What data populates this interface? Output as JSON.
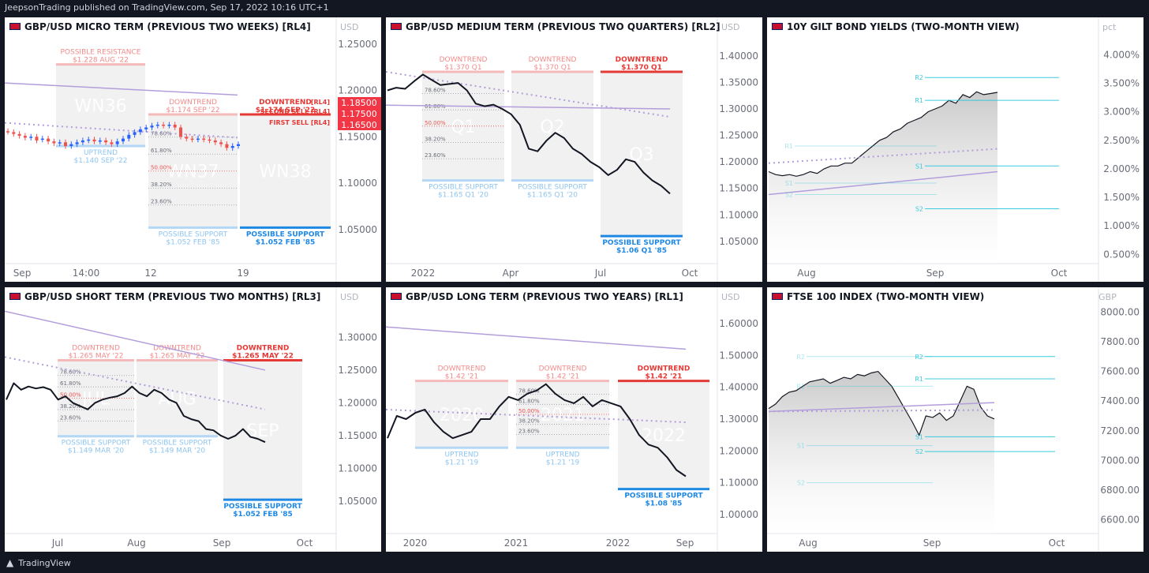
{
  "header": {
    "publish_line": "JeepsonTrading published on TradingView.com, Sep 17, 2022 10:16 UTC+1"
  },
  "footer": {
    "brand": "TradingView"
  },
  "colors": {
    "bg": "#131722",
    "downtrend": "#e53935",
    "downtrend_light": "#f4b9b9",
    "support": "#1e88e5",
    "support_light": "#b3d7f5",
    "ma_purple": "#b39ddb",
    "level_cyan": "#26c6da"
  },
  "chart_data": [
    {
      "id": "micro",
      "type": "candlestick",
      "title": "GBP/USD MICRO TERM (PREVIOUS TWO WEEKS) [RL4]",
      "unit": "USD",
      "ylim": [
        1.02,
        1.26
      ],
      "x_ticks": [
        "Sep",
        "14:00",
        "12",
        "19"
      ],
      "y_ticks": [
        "1.25000",
        "1.20000",
        "1.15000",
        "1.10000",
        "1.05000"
      ],
      "candles": [
        {
          "o": 1.156,
          "c": 1.1555
        },
        {
          "o": 1.155,
          "c": 1.153
        },
        {
          "o": 1.153,
          "c": 1.151
        },
        {
          "o": 1.151,
          "c": 1.149
        },
        {
          "o": 1.149,
          "c": 1.15
        },
        {
          "o": 1.15,
          "c": 1.146
        },
        {
          "o": 1.147,
          "c": 1.148
        },
        {
          "o": 1.148,
          "c": 1.145
        },
        {
          "o": 1.145,
          "c": 1.143
        },
        {
          "o": 1.143,
          "c": 1.144
        },
        {
          "o": 1.144,
          "c": 1.14
        },
        {
          "o": 1.14,
          "c": 1.142
        },
        {
          "o": 1.142,
          "c": 1.144
        },
        {
          "o": 1.144,
          "c": 1.146
        },
        {
          "o": 1.146,
          "c": 1.147
        },
        {
          "o": 1.147,
          "c": 1.145
        },
        {
          "o": 1.145,
          "c": 1.146
        },
        {
          "o": 1.146,
          "c": 1.144
        },
        {
          "o": 1.144,
          "c": 1.142
        },
        {
          "o": 1.142,
          "c": 1.145
        },
        {
          "o": 1.145,
          "c": 1.148
        },
        {
          "o": 1.148,
          "c": 1.152
        },
        {
          "o": 1.152,
          "c": 1.155
        },
        {
          "o": 1.155,
          "c": 1.158
        },
        {
          "o": 1.158,
          "c": 1.16
        },
        {
          "o": 1.16,
          "c": 1.162
        },
        {
          "o": 1.162,
          "c": 1.163
        },
        {
          "o": 1.163,
          "c": 1.162
        },
        {
          "o": 1.162,
          "c": 1.163
        },
        {
          "o": 1.163,
          "c": 1.16
        },
        {
          "o": 1.16,
          "c": 1.15
        },
        {
          "o": 1.15,
          "c": 1.148
        },
        {
          "o": 1.148,
          "c": 1.147
        },
        {
          "o": 1.147,
          "c": 1.148
        },
        {
          "o": 1.148,
          "c": 1.147
        },
        {
          "o": 1.147,
          "c": 1.146
        },
        {
          "o": 1.146,
          "c": 1.144
        },
        {
          "o": 1.144,
          "c": 1.142
        },
        {
          "o": 1.142,
          "c": 1.138
        },
        {
          "o": 1.138,
          "c": 1.14
        },
        {
          "o": 1.14,
          "c": 1.142
        }
      ],
      "ma_line": [
        1.208,
        1.195
      ],
      "ma_dotted": [
        1.165,
        1.149
      ],
      "ranges": [
        {
          "name": "WN36",
          "top_label": "POSSIBLE RESISTANCE",
          "top_value": "$1.228 AUG '22",
          "bottom_label": "UPTREND",
          "bottom_value": "$1.140 SEP '22",
          "strong": false
        },
        {
          "name": "WN37",
          "top_label": "DOWNTREND",
          "top_value": "$1.174 SEP '22",
          "bottom_label": "POSSIBLE SUPPORT",
          "bottom_value": "$1.052  FEB '85",
          "strong": false
        },
        {
          "name": "WN38",
          "top_label": "DOWNTREND",
          "top_value": "$1.174 SEP '22",
          "bottom_label": "POSSIBLE SUPPORT",
          "bottom_value": "$1.052  FEB '85",
          "strong": true
        }
      ],
      "fib_labels": [
        "78.60%",
        "61.80%",
        "50.00%",
        "38.20%",
        "23.60%"
      ],
      "price_tags": [
        {
          "text": "1.18500",
          "value": 1.185
        },
        {
          "text": "1.17500",
          "value": 1.175
        },
        {
          "text": "1.16500",
          "value": 1.165
        }
      ],
      "side_labels": [
        "[RL4]",
        "SECOND SELL [RL4]",
        "FIRST SELL [RL4]"
      ]
    },
    {
      "id": "medium",
      "type": "line",
      "title": "GBP/USD MEDIUM TERM (PREVIOUS TWO QUARTERS) [RL2]",
      "unit": "USD",
      "ylim": [
        1.02,
        1.44
      ],
      "x_ticks": [
        "2022",
        "Apr",
        "Jul",
        "Oct"
      ],
      "y_ticks": [
        "1.40000",
        "1.35000",
        "1.30000",
        "1.25000",
        "1.20000",
        "1.15000",
        "1.10000",
        "1.05000"
      ],
      "values": [
        1.335,
        1.34,
        1.338,
        1.352,
        1.365,
        1.355,
        1.345,
        1.347,
        1.349,
        1.335,
        1.31,
        1.305,
        1.308,
        1.3,
        1.29,
        1.27,
        1.225,
        1.22,
        1.24,
        1.255,
        1.245,
        1.225,
        1.215,
        1.2,
        1.19,
        1.175,
        1.185,
        1.205,
        1.2,
        1.18,
        1.165,
        1.155,
        1.14
      ],
      "ma_line": [
        1.307,
        1.3
      ],
      "ma_dotted": [
        1.37,
        1.285
      ],
      "ranges": [
        {
          "name": "Q1",
          "top_label": "DOWNTREND",
          "top_value": "$1.370 Q1",
          "bottom_label": "POSSIBLE SUPPORT",
          "bottom_value": "$1.165 Q1 '20",
          "strong": false
        },
        {
          "name": "Q2",
          "top_label": "DOWNTREND",
          "top_value": "$1.370 Q1",
          "bottom_label": "POSSIBLE SUPPORT",
          "bottom_value": "$1.165 Q1 '20",
          "strong": false
        },
        {
          "name": "Q3",
          "top_label": "DOWNTREND",
          "top_value": "$1.370 Q1",
          "bottom_label": "POSSIBLE SUPPORT",
          "bottom_value": "$1.06 Q1 '85",
          "strong": true
        }
      ],
      "fib_labels": [
        "78.60%",
        "61.80%",
        "50.00%",
        "38.20%",
        "23.60%"
      ]
    },
    {
      "id": "gilt",
      "type": "area",
      "title": "10Y GILT BOND YIELDS (TWO-MONTH VIEW)",
      "unit": "pct",
      "ylim": [
        0.45,
        4.35
      ],
      "x_ticks": [
        "Aug",
        "Sep",
        "Oct"
      ],
      "y_ticks": [
        "4.000%",
        "3.500%",
        "3.000%",
        "2.500%",
        "2.000%",
        "1.500%",
        "1.000%",
        "0.500%"
      ],
      "values": [
        1.95,
        1.9,
        1.88,
        1.9,
        1.87,
        1.9,
        1.95,
        1.92,
        2.0,
        2.05,
        2.05,
        2.1,
        2.1,
        2.2,
        2.3,
        2.4,
        2.5,
        2.55,
        2.65,
        2.7,
        2.8,
        2.85,
        2.9,
        3.0,
        3.05,
        3.1,
        3.2,
        3.15,
        3.3,
        3.25,
        3.35,
        3.3,
        3.32,
        3.34
      ],
      "ma_line": [
        1.55,
        1.95
      ],
      "ma_dotted": [
        2.1,
        2.35
      ],
      "levels": [
        {
          "label": "R2",
          "value": 3.6
        },
        {
          "label": "R1",
          "value": 3.2
        },
        {
          "label": "R1",
          "value": 2.4
        },
        {
          "label": "S1",
          "value": 2.05
        },
        {
          "label": "S1",
          "value": 1.75
        },
        {
          "label": "S2",
          "value": 1.55
        },
        {
          "label": "S2",
          "value": 1.3
        }
      ]
    },
    {
      "id": "short",
      "type": "line",
      "title": "GBP/USD SHORT TERM (PREVIOUS TWO MONTHS) [RL3]",
      "unit": "USD",
      "ylim": [
        1.01,
        1.35
      ],
      "x_ticks": [
        "Jul",
        "Aug",
        "Sep",
        "Oct"
      ],
      "y_ticks": [
        "1.30000",
        "1.25000",
        "1.20000",
        "1.15000",
        "1.10000",
        "1.05000"
      ],
      "values": [
        1.205,
        1.23,
        1.22,
        1.225,
        1.222,
        1.224,
        1.22,
        1.205,
        1.21,
        1.2,
        1.195,
        1.19,
        1.2,
        1.205,
        1.208,
        1.21,
        1.215,
        1.225,
        1.215,
        1.21,
        1.22,
        1.215,
        1.205,
        1.2,
        1.18,
        1.175,
        1.172,
        1.16,
        1.158,
        1.15,
        1.145,
        1.15,
        1.16,
        1.148,
        1.145,
        1.14
      ],
      "ma_line": [
        1.34,
        1.25
      ],
      "ma_dotted": [
        1.27,
        1.19
      ],
      "ranges": [
        {
          "name": "JUL",
          "top_label": "DOWNTREND",
          "top_value": "$1.265 MAY '22",
          "bottom_label": "POSSIBLE SUPPORT",
          "bottom_value": "$1.149 MAR '20",
          "strong": false
        },
        {
          "name": "AUG",
          "top_label": "DOWNTREND",
          "top_value": "$1.265 MAY '22",
          "bottom_label": "POSSIBLE SUPPORT",
          "bottom_value": "$1.149 MAR '20",
          "strong": false
        },
        {
          "name": "SEP",
          "top_label": "DOWNTREND",
          "top_value": "$1.265 MAY '22",
          "bottom_label": "POSSIBLE SUPPORT",
          "bottom_value": "$1.052  FEB '85",
          "strong": true
        }
      ],
      "fib_labels": [
        "78.60%",
        "61.80%",
        "50.00%",
        "38.20%",
        "23.60%"
      ]
    },
    {
      "id": "long",
      "type": "line",
      "title": "GBP/USD LONG TERM (PREVIOUS TWO YEARS) [RL1]",
      "unit": "USD",
      "ylim": [
        0.96,
        1.66
      ],
      "x_ticks": [
        "2020",
        "2021",
        "2022",
        "Sep"
      ],
      "y_ticks": [
        "1.60000",
        "1.50000",
        "1.40000",
        "1.30000",
        "1.20000",
        "1.10000",
        "1.00000"
      ],
      "values": [
        1.24,
        1.31,
        1.3,
        1.32,
        1.33,
        1.29,
        1.26,
        1.24,
        1.25,
        1.26,
        1.3,
        1.3,
        1.34,
        1.37,
        1.36,
        1.38,
        1.39,
        1.41,
        1.38,
        1.36,
        1.35,
        1.37,
        1.34,
        1.36,
        1.35,
        1.34,
        1.3,
        1.25,
        1.22,
        1.21,
        1.18,
        1.14,
        1.12
      ],
      "ma_line": [
        1.59,
        1.52
      ],
      "ma_dotted": [
        1.33,
        1.29
      ],
      "ranges": [
        {
          "name": "2020",
          "top_label": "DOWNTREND",
          "top_value": "$1.42 '21",
          "bottom_label": "UPTREND",
          "bottom_value": "$1.21 '19",
          "strong": false
        },
        {
          "name": "2021",
          "top_label": "DOWNTREND",
          "top_value": "$1.42 '21",
          "bottom_label": "UPTREND",
          "bottom_value": "$1.21 '19",
          "strong": false
        },
        {
          "name": "2022",
          "top_label": "DOWNTREND",
          "top_value": "$1.42 '21",
          "bottom_label": "POSSIBLE SUPPORT",
          "bottom_value": "$1.08 '85",
          "strong": true
        }
      ],
      "fib_labels": [
        "78.60%",
        "61.80%",
        "50.00%",
        "38.20%",
        "23.60%"
      ]
    },
    {
      "id": "ftse",
      "type": "area",
      "title": "FTSE 100 INDEX (TWO-MONTH VIEW)",
      "unit": "GBP",
      "ylim": [
        6550,
        8050
      ],
      "x_ticks": [
        "Aug",
        "Sep",
        "Oct"
      ],
      "y_ticks": [
        "8000.00",
        "7800.00",
        "7600.00",
        "7400.00",
        "7200.00",
        "7000.00",
        "6800.00",
        "6600.00"
      ],
      "values": [
        7350,
        7380,
        7430,
        7460,
        7470,
        7500,
        7530,
        7540,
        7550,
        7520,
        7540,
        7560,
        7550,
        7580,
        7570,
        7590,
        7600,
        7550,
        7500,
        7420,
        7340,
        7260,
        7170,
        7300,
        7290,
        7320,
        7270,
        7300,
        7400,
        7500,
        7480,
        7360,
        7300,
        7280
      ],
      "ma_line": [
        7330,
        7390
      ],
      "ma_dotted": [
        7330,
        7340
      ],
      "levels": [
        {
          "label": "R2",
          "value": 7700
        },
        {
          "label": "R2",
          "value": 7700
        },
        {
          "label": "R1",
          "value": 7550
        },
        {
          "label": "R1",
          "value": 7500
        },
        {
          "label": "S1",
          "value": 7100
        },
        {
          "label": "S1",
          "value": 7160
        },
        {
          "label": "S2",
          "value": 7060
        },
        {
          "label": "S2",
          "value": 6850
        }
      ]
    }
  ]
}
